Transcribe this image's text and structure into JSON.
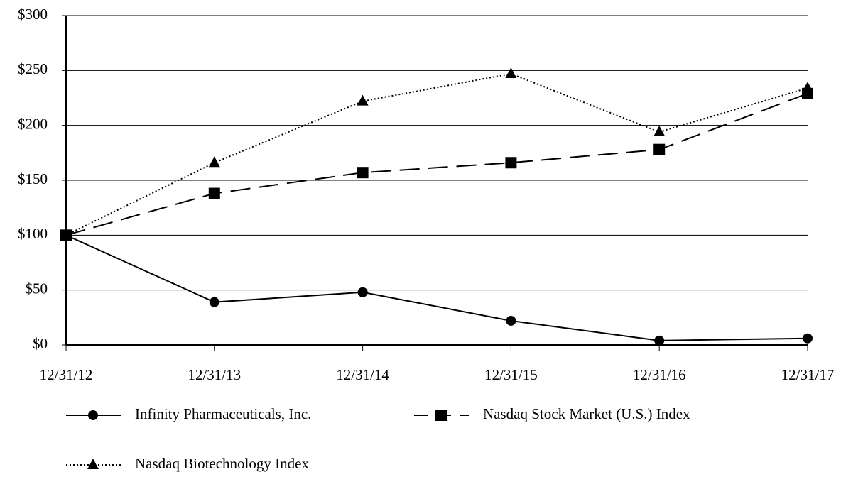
{
  "chart_data": {
    "type": "line",
    "categories": [
      "12/31/12",
      "12/31/13",
      "12/31/14",
      "12/31/15",
      "12/31/16",
      "12/31/17"
    ],
    "series": [
      {
        "name": "Infinity Pharmaceuticals, Inc.",
        "color": "#000000",
        "dash": "solid",
        "marker": "circle",
        "values": [
          100,
          39,
          48,
          22,
          4,
          6
        ]
      },
      {
        "name": "Nasdaq Stock Market (U.S.) Index",
        "color": "#000000",
        "dash": "dashed",
        "marker": "square",
        "values": [
          100,
          138,
          157,
          166,
          178,
          229
        ]
      },
      {
        "name": "Nasdaq Biotechnology Index",
        "color": "#000000",
        "dash": "dotted",
        "marker": "triangle",
        "values": [
          100,
          166,
          222,
          247,
          194,
          234
        ]
      }
    ],
    "ylim": [
      0,
      300
    ],
    "yticks": [
      {
        "value": 0,
        "label": "$0"
      },
      {
        "value": 50,
        "label": "$50"
      },
      {
        "value": 100,
        "label": "$100"
      },
      {
        "value": 150,
        "label": "$150"
      },
      {
        "value": 200,
        "label": "$200"
      },
      {
        "value": 250,
        "label": "$250"
      },
      {
        "value": 300,
        "label": "$300"
      }
    ],
    "grid": true
  }
}
